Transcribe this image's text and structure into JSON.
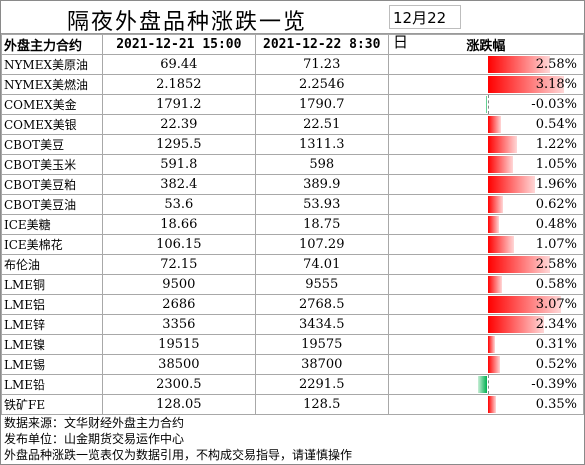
{
  "title": "隔夜外盘品种涨跌一览",
  "date": "12月22日",
  "headers": {
    "name": "外盘主力合约",
    "prev": "2021-12-21 15:00",
    "curr": "2021-12-22 8:30",
    "change": "涨跌幅"
  },
  "rows": [
    {
      "name": "NYMEX美原油",
      "prev": "69.44",
      "curr": "71.23",
      "change": "2.58%",
      "value": 2.58
    },
    {
      "name": "NYMEX美燃油",
      "prev": "2.1852",
      "curr": "2.2546",
      "change": "3.18%",
      "value": 3.18
    },
    {
      "name": "COMEX美金",
      "prev": "1791.2",
      "curr": "1790.7",
      "change": "-0.03%",
      "value": -0.03
    },
    {
      "name": "COMEX美银",
      "prev": "22.39",
      "curr": "22.51",
      "change": "0.54%",
      "value": 0.54
    },
    {
      "name": "CBOT美豆",
      "prev": "1295.5",
      "curr": "1311.3",
      "change": "1.22%",
      "value": 1.22
    },
    {
      "name": "CBOT美玉米",
      "prev": "591.8",
      "curr": "598",
      "change": "1.05%",
      "value": 1.05
    },
    {
      "name": "CBOT美豆粕",
      "prev": "382.4",
      "curr": "389.9",
      "change": "1.96%",
      "value": 1.96
    },
    {
      "name": "CBOT美豆油",
      "prev": "53.6",
      "curr": "53.93",
      "change": "0.62%",
      "value": 0.62
    },
    {
      "name": "ICE美糖",
      "prev": "18.66",
      "curr": "18.75",
      "change": "0.48%",
      "value": 0.48
    },
    {
      "name": "ICE美棉花",
      "prev": "106.15",
      "curr": "107.29",
      "change": "1.07%",
      "value": 1.07
    },
    {
      "name": "布伦油",
      "prev": "72.15",
      "curr": "74.01",
      "change": "2.58%",
      "value": 2.58
    },
    {
      "name": "LME铜",
      "prev": "9500",
      "curr": "9555",
      "change": "0.58%",
      "value": 0.58
    },
    {
      "name": "LME铝",
      "prev": "2686",
      "curr": "2768.5",
      "change": "3.07%",
      "value": 3.07
    },
    {
      "name": "LME锌",
      "prev": "3356",
      "curr": "3434.5",
      "change": "2.34%",
      "value": 2.34
    },
    {
      "name": "LME镍",
      "prev": "19515",
      "curr": "19575",
      "change": "0.31%",
      "value": 0.31
    },
    {
      "name": "LME锡",
      "prev": "38500",
      "curr": "38700",
      "change": "0.52%",
      "value": 0.52
    },
    {
      "name": "LME铅",
      "prev": "2300.5",
      "curr": "2291.5",
      "change": "-0.39%",
      "value": -0.39
    },
    {
      "name": "铁矿FE",
      "prev": "128.05",
      "curr": "128.5",
      "change": "0.35%",
      "value": 0.35
    }
  ],
  "notes": [
    "数据来源：文华财经外盘主力合约",
    "发布单位：山金期货交易运作中心",
    "外盘品种涨跌一览表仅为数据引用，不构成交易指导，请谨慎操作"
  ],
  "colors": {
    "up": "#ff0000",
    "down": "#00b050"
  },
  "scale_max": 3.18
}
